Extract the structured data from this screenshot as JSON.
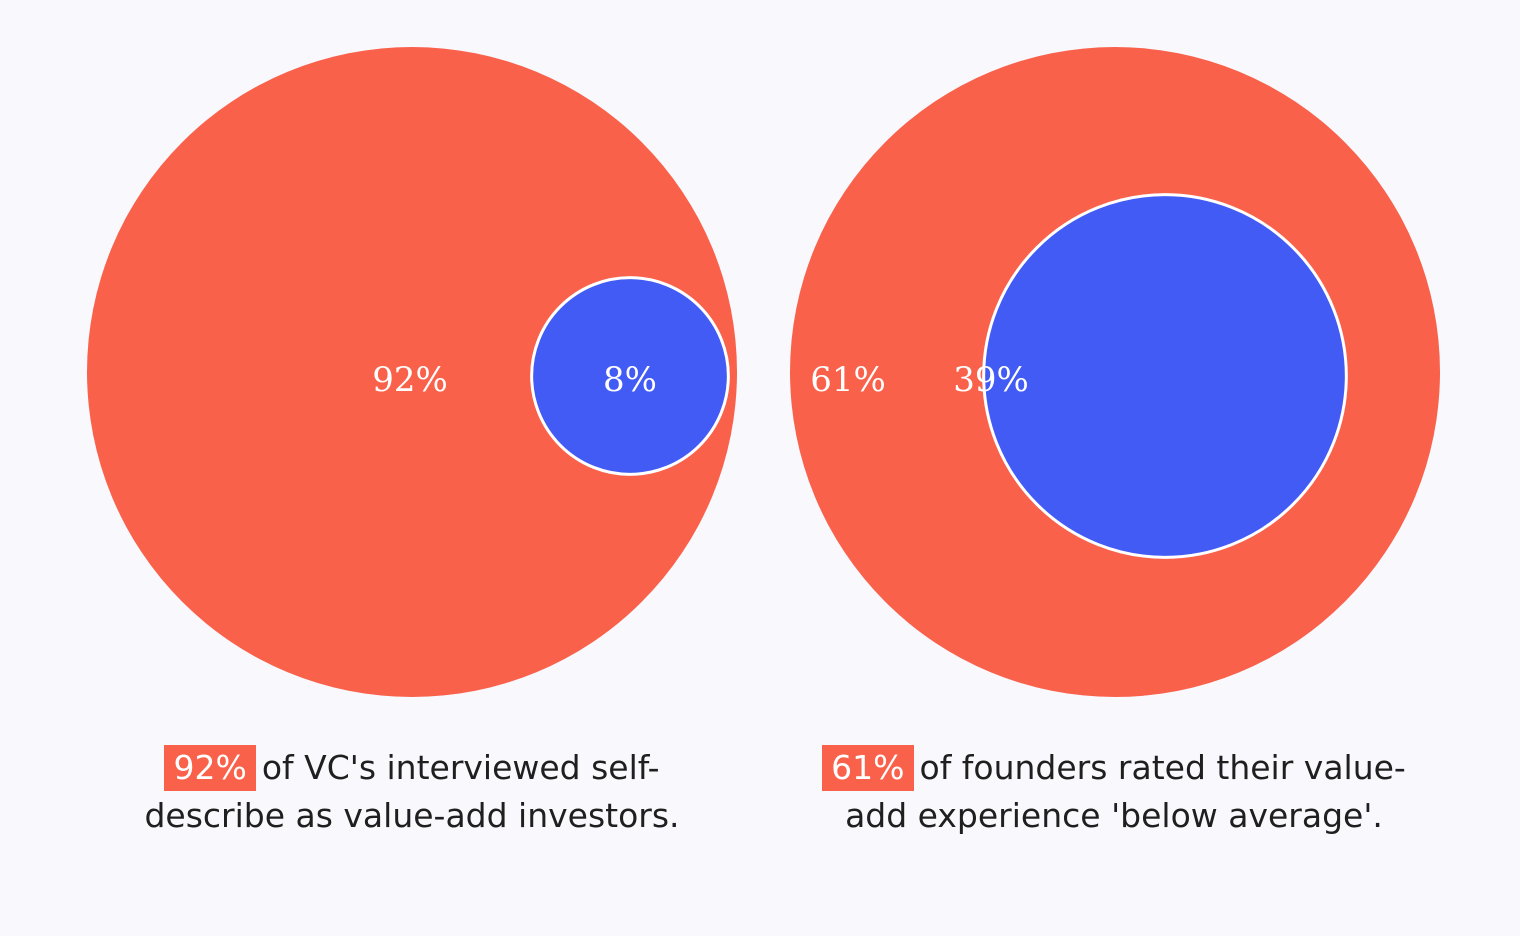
{
  "colors": {
    "outer": "#f9614b",
    "inner": "#425bf5",
    "stroke": "#ffffff",
    "background": "#f9f9fd",
    "caption_text": "#1f1f1f"
  },
  "chart_data": [
    {
      "type": "nested-circle",
      "series": [
        {
          "name": "",
          "value": 92,
          "label": "92%",
          "role": "outer"
        },
        {
          "name": "",
          "value": 8,
          "label": "8%",
          "role": "inner"
        }
      ]
    },
    {
      "type": "nested-circle",
      "series": [
        {
          "name": "",
          "value": 61,
          "label": "61%",
          "role": "outer"
        },
        {
          "name": "",
          "value": 39,
          "label": "39%",
          "role": "inner"
        }
      ]
    }
  ],
  "captions": [
    {
      "highlight": "92%",
      "line1": "of VC's interviewed self-",
      "line2": "describe as value-add investors."
    },
    {
      "highlight": "61%",
      "line1": "of founders rated their value-",
      "line2": "add experience 'below average'."
    }
  ]
}
